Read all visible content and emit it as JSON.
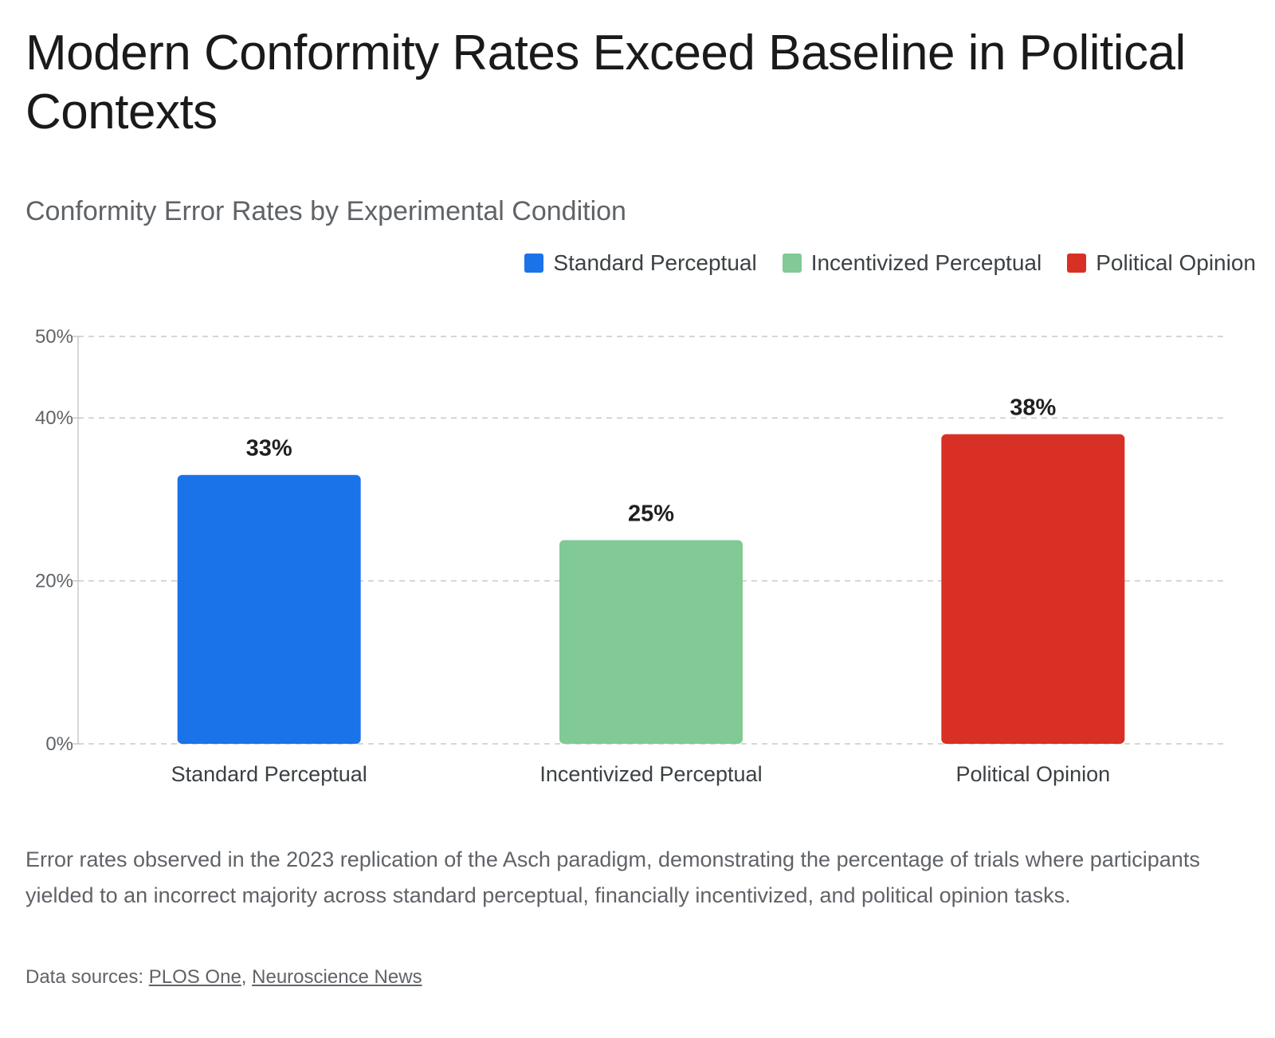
{
  "headline": "Modern Conformity Rates Exceed Baseline in Political Contexts",
  "caption": "Error rates observed in the 2023 replication of the Asch paradigm, demonstrating the percentage of trials where participants yielded to an incorrect majority across standard perceptual, financially incentivized, and political opinion tasks.",
  "sources": {
    "prefix": "Data sources: ",
    "links": [
      {
        "label": "PLOS One"
      },
      {
        "label": "Neuroscience News"
      }
    ],
    "separator": ", "
  },
  "colors": {
    "standard": "#1a73e8",
    "incentivized": "#81c995",
    "political": "#d93025",
    "grid": "#c8c8c8",
    "axis_text": "#5f6368",
    "label_text": "#1f1f1f"
  },
  "chart_data": {
    "type": "bar",
    "title": "Conformity Error Rates by Experimental Condition",
    "xlabel": "",
    "ylabel": "",
    "categories": [
      "Standard Perceptual",
      "Incentivized Perceptual",
      "Political Opinion"
    ],
    "values": [
      33,
      25,
      38
    ],
    "value_labels": [
      "33%",
      "25%",
      "38%"
    ],
    "bar_colors": [
      "#1a73e8",
      "#81c995",
      "#d93025"
    ],
    "ylim": [
      0,
      50
    ],
    "yticks": [
      0,
      20,
      40,
      50
    ],
    "ytick_labels": [
      "0%",
      "20%",
      "40%",
      "50%"
    ],
    "grid": true,
    "grid_style": "dashed",
    "legend": {
      "position": "top-right",
      "entries": [
        "Standard Perceptual",
        "Incentivized Perceptual",
        "Political Opinion"
      ]
    }
  }
}
